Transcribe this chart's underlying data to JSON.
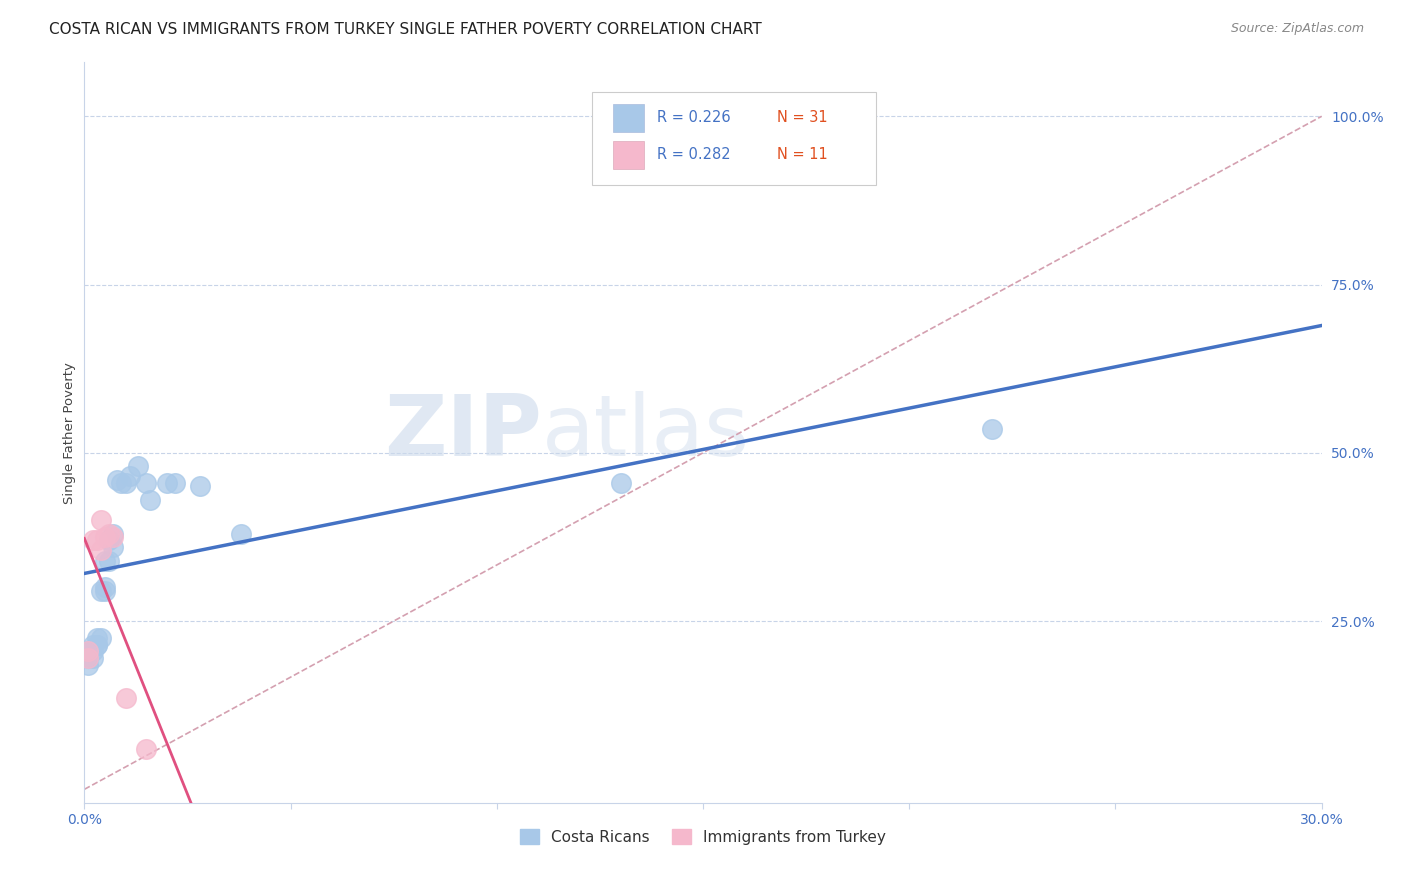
{
  "title": "COSTA RICAN VS IMMIGRANTS FROM TURKEY SINGLE FATHER POVERTY CORRELATION CHART",
  "source": "Source: ZipAtlas.com",
  "ylabel": "Single Father Poverty",
  "right_yticks": [
    "100.0%",
    "75.0%",
    "50.0%",
    "25.0%"
  ],
  "right_ytick_vals": [
    1.0,
    0.75,
    0.5,
    0.25
  ],
  "xlim": [
    0.0,
    0.3
  ],
  "ylim": [
    -0.02,
    1.08
  ],
  "legend_r1": "R = 0.226",
  "legend_n1": "N = 31",
  "legend_r2": "R = 0.282",
  "legend_n2": "N = 11",
  "label1": "Costa Ricans",
  "label2": "Immigrants from Turkey",
  "color1": "#a8c8e8",
  "color2": "#f5b8cc",
  "line_color1": "#4472c4",
  "line_color2": "#e05080",
  "diag_color": "#d4a0b0",
  "watermark_zip": "ZIP",
  "watermark_atlas": "atlas",
  "costa_rican_x": [
    0.001,
    0.001,
    0.001,
    0.002,
    0.002,
    0.002,
    0.003,
    0.003,
    0.003,
    0.004,
    0.004,
    0.005,
    0.005,
    0.005,
    0.006,
    0.006,
    0.007,
    0.007,
    0.008,
    0.009,
    0.01,
    0.011,
    0.013,
    0.015,
    0.016,
    0.02,
    0.022,
    0.028,
    0.038,
    0.13,
    0.22
  ],
  "costa_rican_y": [
    0.185,
    0.195,
    0.205,
    0.195,
    0.205,
    0.215,
    0.215,
    0.215,
    0.225,
    0.225,
    0.295,
    0.295,
    0.3,
    0.34,
    0.34,
    0.37,
    0.36,
    0.38,
    0.46,
    0.455,
    0.455,
    0.465,
    0.48,
    0.455,
    0.43,
    0.455,
    0.455,
    0.45,
    0.38,
    0.455,
    0.535
  ],
  "turkey_x": [
    0.001,
    0.001,
    0.002,
    0.003,
    0.004,
    0.004,
    0.005,
    0.006,
    0.007,
    0.01,
    0.015
  ],
  "turkey_y": [
    0.195,
    0.205,
    0.37,
    0.37,
    0.355,
    0.4,
    0.375,
    0.38,
    0.375,
    0.135,
    0.06
  ],
  "background_color": "#ffffff",
  "grid_color": "#c8d4e8",
  "title_fontsize": 11,
  "axis_label_fontsize": 9.5,
  "tick_fontsize": 10,
  "legend_fontsize": 11
}
